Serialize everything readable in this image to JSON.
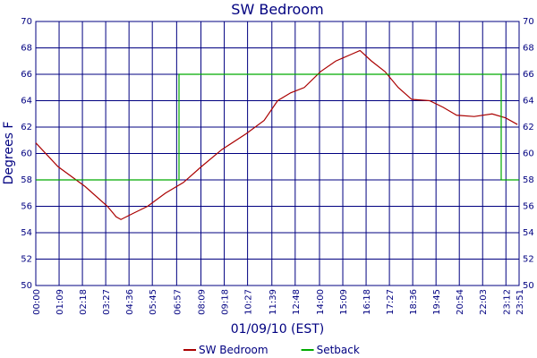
{
  "chart_data": {
    "type": "line",
    "title": "SW Bedroom",
    "xlabel": "01/09/10 (EST)",
    "ylabel": "Degrees F",
    "xlim": [
      0,
      1431
    ],
    "xticks": [
      {
        "value": 0,
        "label": "00:00"
      },
      {
        "value": 69,
        "label": "01:09"
      },
      {
        "value": 138,
        "label": "02:18"
      },
      {
        "value": 207,
        "label": "03:27"
      },
      {
        "value": 276,
        "label": "04:36"
      },
      {
        "value": 345,
        "label": "05:45"
      },
      {
        "value": 417,
        "label": "06:57"
      },
      {
        "value": 489,
        "label": "08:09"
      },
      {
        "value": 558,
        "label": "09:18"
      },
      {
        "value": 627,
        "label": "10:27"
      },
      {
        "value": 699,
        "label": "11:39"
      },
      {
        "value": 768,
        "label": "12:48"
      },
      {
        "value": 840,
        "label": "14:00"
      },
      {
        "value": 909,
        "label": "15:09"
      },
      {
        "value": 978,
        "label": "16:18"
      },
      {
        "value": 1047,
        "label": "17:27"
      },
      {
        "value": 1116,
        "label": "18:36"
      },
      {
        "value": 1185,
        "label": "19:45"
      },
      {
        "value": 1254,
        "label": "20:54"
      },
      {
        "value": 1323,
        "label": "22:03"
      },
      {
        "value": 1392,
        "label": "23:12"
      },
      {
        "value": 1431,
        "label": "23:51"
      }
    ],
    "ylim": [
      50,
      70
    ],
    "yticks": [
      50,
      52,
      54,
      56,
      58,
      60,
      62,
      64,
      66,
      68,
      70
    ],
    "grid": true,
    "series": [
      {
        "name": "SW Bedroom",
        "color": "#aa0000",
        "x": [
          0,
          66,
          146,
          212,
          238,
          252,
          291,
          331,
          384,
          437,
          490,
          551,
          623,
          676,
          716,
          755,
          795,
          843,
          888,
          933,
          960,
          994,
          1034,
          1073,
          1113,
          1166,
          1206,
          1246,
          1298,
          1351,
          1391,
          1426
        ],
        "values": [
          60.8,
          59,
          57.5,
          56,
          55.2,
          55,
          55.5,
          56,
          57,
          57.8,
          59,
          60.3,
          61.5,
          62.5,
          64,
          64.6,
          65,
          66.2,
          67,
          67.5,
          67.8,
          67,
          66.2,
          65,
          64.1,
          64,
          63.5,
          62.9,
          62.8,
          63,
          62.7,
          62.2
        ]
      },
      {
        "name": "Setback",
        "color": "#00aa00",
        "x": [
          0,
          424,
          424,
          1378,
          1378,
          1431
        ],
        "values": [
          58,
          58,
          66,
          66,
          58,
          58
        ]
      }
    ]
  }
}
